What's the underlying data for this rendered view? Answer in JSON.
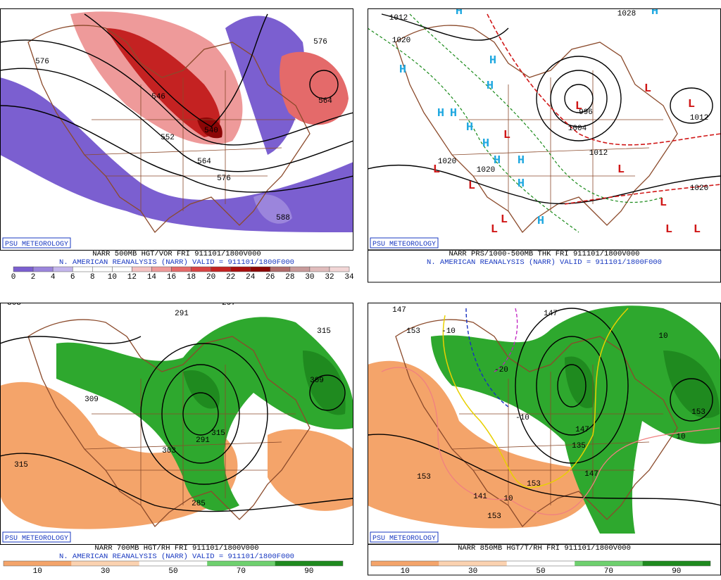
{
  "panels": [
    {
      "credit": "PSU METEOROLOGY",
      "caption1": "NARR 500MB HGT/VOR FRI 911101/1800V000",
      "caption2": "N. AMERICAN REANALYSIS (NARR) VALID = 911101/1800F000",
      "colorbar": {
        "labels": [
          0,
          2,
          4,
          6,
          8,
          10,
          12,
          14,
          16,
          18,
          20,
          22,
          24,
          26,
          28,
          30,
          32,
          34
        ],
        "colors": [
          "#7b5fd0",
          "#9b85dc",
          "#c4b6ec",
          "#ffffff",
          "#ffffff",
          "#ffffff",
          "#f4c2c2",
          "#ee9a9a",
          "#e46a6a",
          "#d84444",
          "#c42222",
          "#a80f0f",
          "#8c0606",
          "#b06b6b",
          "#c89a9a",
          "#e0bcbc",
          "#f2d6d6"
        ]
      },
      "contour_labels": [
        "576",
        "546",
        "552",
        "540",
        "564",
        "576",
        "588",
        "564",
        "576"
      ]
    },
    {
      "credit": "PSU METEOROLOGY",
      "caption1": "NARR PRS/1000-500MB THK FRI 911101/1800V000",
      "caption2": "N. AMERICAN REANALYSIS (NARR) VALID = 911101/1800F000",
      "contour_labels": [
        "1012",
        "1020",
        "1028",
        "996",
        "1004",
        "1012",
        "1020",
        "1020",
        "1012",
        "1020"
      ],
      "highs": [
        "H",
        "H",
        "H",
        "H",
        "H",
        "H",
        "H",
        "H",
        "H",
        "H",
        "H",
        "H",
        "H"
      ],
      "lows": [
        "L",
        "L",
        "L",
        "L",
        "L",
        "L",
        "L",
        "L",
        "L",
        "L",
        "L",
        "L"
      ]
    },
    {
      "credit": "PSU METEOROLOGY",
      "caption1": "NARR 700MB HGT/RH FRI 911101/1800V000",
      "caption2": "N. AMERICAN REANALYSIS (NARR) VALID = 911101/1800F000",
      "colorbar": {
        "labels": [
          10,
          30,
          50,
          70,
          90
        ],
        "colors": [
          "#f4a46a",
          "#fbd2b0",
          "#ffffff",
          "#6ed06e",
          "#1f8a1f"
        ]
      },
      "contour_labels": [
        "303",
        "291",
        "297",
        "309",
        "315",
        "309",
        "315",
        "303",
        "291",
        "315",
        "285"
      ]
    },
    {
      "credit": "PSU METEOROLOGY",
      "caption1": "NARR 850MB HGT/T/RH FRI 911101/1800V000",
      "caption2": "",
      "colorbar": {
        "labels": [
          10,
          30,
          50,
          70,
          90
        ],
        "colors": [
          "#f4a46a",
          "#fbd2b0",
          "#ffffff",
          "#6ed06e",
          "#1f8a1f"
        ]
      },
      "contour_labels": [
        "147",
        "153",
        "-10",
        "-20",
        "-10",
        "147",
        "153",
        "153",
        "141",
        "135",
        "147",
        "10",
        "10",
        "10",
        "153",
        "147",
        "153"
      ]
    }
  ]
}
